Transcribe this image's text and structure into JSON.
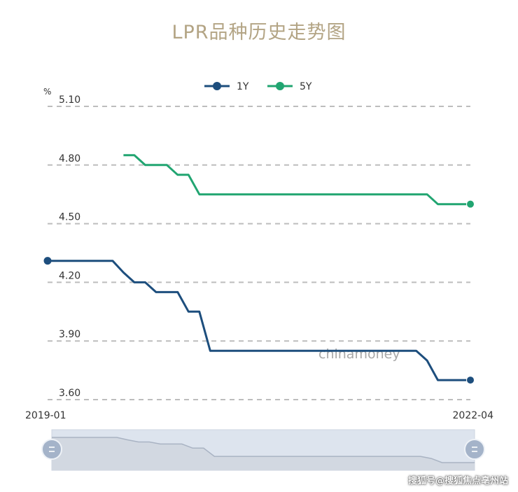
{
  "header": {
    "title": "LPR品种历史走势图"
  },
  "footer": {
    "watermark": "搜狐号@搜狐焦点亳州站"
  },
  "colors": {
    "title": "#b3a484",
    "series_1y": "#1d4e7d",
    "series_5y": "#21a571",
    "grid": "#bdbdbd",
    "zoom_bg": "#dde4ee"
  },
  "chart_data": {
    "type": "line",
    "title": "LPR品种历史走势图",
    "unit": "%",
    "ylim": [
      3.6,
      5.1
    ],
    "y_ticks": [
      "5.10",
      "4.80",
      "4.50",
      "4.20",
      "3.90",
      "3.60"
    ],
    "x_tick_labels": [
      "2019-01",
      "2022-04"
    ],
    "grid": true,
    "legend_position": "top-center",
    "watermark": "chinamoney",
    "x": [
      "2019-01",
      "2019-02",
      "2019-03",
      "2019-04",
      "2019-05",
      "2019-06",
      "2019-07",
      "2019-08",
      "2019-09",
      "2019-10",
      "2019-11",
      "2019-12",
      "2020-01",
      "2020-02",
      "2020-03",
      "2020-04",
      "2020-05",
      "2020-06",
      "2020-07",
      "2020-08",
      "2020-09",
      "2020-10",
      "2020-11",
      "2020-12",
      "2021-01",
      "2021-02",
      "2021-03",
      "2021-04",
      "2021-05",
      "2021-06",
      "2021-07",
      "2021-08",
      "2021-09",
      "2021-10",
      "2021-11",
      "2021-12",
      "2022-01",
      "2022-02",
      "2022-03",
      "2022-04"
    ],
    "series": [
      {
        "name": "1Y",
        "values": [
          4.31,
          4.31,
          4.31,
          4.31,
          4.31,
          4.31,
          4.31,
          4.25,
          4.2,
          4.2,
          4.15,
          4.15,
          4.15,
          4.05,
          4.05,
          3.85,
          3.85,
          3.85,
          3.85,
          3.85,
          3.85,
          3.85,
          3.85,
          3.85,
          3.85,
          3.85,
          3.85,
          3.85,
          3.85,
          3.85,
          3.85,
          3.85,
          3.85,
          3.85,
          3.85,
          3.8,
          3.7,
          3.7,
          3.7,
          3.7
        ]
      },
      {
        "name": "5Y",
        "values": [
          null,
          null,
          null,
          null,
          null,
          null,
          null,
          4.85,
          4.85,
          4.8,
          4.8,
          4.8,
          4.75,
          4.75,
          4.65,
          4.65,
          4.65,
          4.65,
          4.65,
          4.65,
          4.65,
          4.65,
          4.65,
          4.65,
          4.65,
          4.65,
          4.65,
          4.65,
          4.65,
          4.65,
          4.65,
          4.65,
          4.65,
          4.65,
          4.65,
          4.65,
          4.6,
          4.6,
          4.6,
          4.6
        ]
      }
    ]
  }
}
